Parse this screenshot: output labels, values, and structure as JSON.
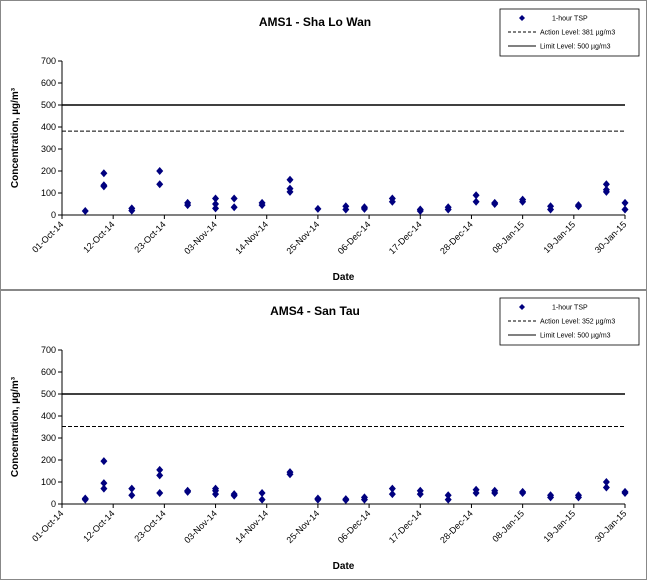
{
  "chart_data": [
    {
      "type": "scatter",
      "title": "AMS1 - Sha Lo Wan",
      "x_label": "Date",
      "y_label": "Concentration, µg/m³",
      "ylim": [
        0,
        700
      ],
      "yticks": [
        0,
        100,
        200,
        300,
        400,
        500,
        600,
        700
      ],
      "xlim": [
        "2014-10-01",
        "2015-01-30"
      ],
      "xticks": [
        {
          "value": "2014-10-01",
          "label": "01-Oct-14"
        },
        {
          "value": "2014-10-12",
          "label": "12-Oct-14"
        },
        {
          "value": "2014-10-23",
          "label": "23-Oct-14"
        },
        {
          "value": "2014-11-03",
          "label": "03-Nov-14"
        },
        {
          "value": "2014-11-14",
          "label": "14-Nov-14"
        },
        {
          "value": "2014-11-25",
          "label": "25-Nov-14"
        },
        {
          "value": "2014-12-06",
          "label": "06-Dec-14"
        },
        {
          "value": "2014-12-17",
          "label": "17-Dec-14"
        },
        {
          "value": "2014-12-28",
          "label": "28-Dec-14"
        },
        {
          "value": "2015-01-08",
          "label": "08-Jan-15"
        },
        {
          "value": "2015-01-19",
          "label": "19-Jan-15"
        },
        {
          "value": "2015-01-30",
          "label": "30-Jan-15"
        }
      ],
      "series": [
        {
          "name": "1-hour TSP",
          "color": "#00007f",
          "x": [
            "2014-10-06",
            "2014-10-10",
            "2014-10-10",
            "2014-10-10",
            "2014-10-16",
            "2014-10-16",
            "2014-10-22",
            "2014-10-22",
            "2014-10-28",
            "2014-10-28",
            "2014-11-03",
            "2014-11-03",
            "2014-11-03",
            "2014-11-07",
            "2014-11-07",
            "2014-11-13",
            "2014-11-13",
            "2014-11-19",
            "2014-11-19",
            "2014-11-19",
            "2014-11-25",
            "2014-12-01",
            "2014-12-01",
            "2014-12-05",
            "2014-12-05",
            "2014-12-11",
            "2014-12-11",
            "2014-12-17",
            "2014-12-17",
            "2014-12-23",
            "2014-12-23",
            "2014-12-29",
            "2014-12-29",
            "2015-01-02",
            "2015-01-02",
            "2015-01-08",
            "2015-01-08",
            "2015-01-14",
            "2015-01-14",
            "2015-01-20",
            "2015-01-20",
            "2015-01-26",
            "2015-01-26",
            "2015-01-26",
            "2015-01-30",
            "2015-01-30"
          ],
          "values": [
            18,
            190,
            135,
            130,
            30,
            20,
            200,
            140,
            55,
            45,
            75,
            50,
            30,
            75,
            35,
            55,
            45,
            160,
            120,
            105,
            28,
            40,
            25,
            35,
            28,
            75,
            60,
            25,
            18,
            35,
            25,
            90,
            60,
            55,
            50,
            70,
            60,
            40,
            25,
            45,
            40,
            140,
            115,
            105,
            55,
            25
          ]
        }
      ],
      "reference_lines": [
        {
          "name": "Action Level: 381 µg/m3",
          "value": 381,
          "style": "dashed"
        },
        {
          "name": "Limit Level: 500 µg/m3",
          "value": 500,
          "style": "solid"
        }
      ]
    },
    {
      "type": "scatter",
      "title": "AMS4 - San Tau",
      "x_label": "Date",
      "y_label": "Concentration, µg/m³",
      "ylim": [
        0,
        700
      ],
      "yticks": [
        0,
        100,
        200,
        300,
        400,
        500,
        600,
        700
      ],
      "xlim": [
        "2014-10-01",
        "2015-01-30"
      ],
      "xticks": [
        {
          "value": "2014-10-01",
          "label": "01-Oct-14"
        },
        {
          "value": "2014-10-12",
          "label": "12-Oct-14"
        },
        {
          "value": "2014-10-23",
          "label": "23-Oct-14"
        },
        {
          "value": "2014-11-03",
          "label": "03-Nov-14"
        },
        {
          "value": "2014-11-14",
          "label": "14-Nov-14"
        },
        {
          "value": "2014-11-25",
          "label": "25-Nov-14"
        },
        {
          "value": "2014-12-06",
          "label": "06-Dec-14"
        },
        {
          "value": "2014-12-17",
          "label": "17-Dec-14"
        },
        {
          "value": "2014-12-28",
          "label": "28-Dec-14"
        },
        {
          "value": "2015-01-08",
          "label": "08-Jan-15"
        },
        {
          "value": "2015-01-19",
          "label": "19-Jan-15"
        },
        {
          "value": "2015-01-30",
          "label": "30-Jan-15"
        }
      ],
      "series": [
        {
          "name": "1-hour TSP",
          "color": "#00007f",
          "x": [
            "2014-10-06",
            "2014-10-06",
            "2014-10-10",
            "2014-10-10",
            "2014-10-10",
            "2014-10-16",
            "2014-10-16",
            "2014-10-22",
            "2014-10-22",
            "2014-10-22",
            "2014-10-28",
            "2014-10-28",
            "2014-11-03",
            "2014-11-03",
            "2014-11-03",
            "2014-11-07",
            "2014-11-07",
            "2014-11-13",
            "2014-11-13",
            "2014-11-19",
            "2014-11-19",
            "2014-11-25",
            "2014-11-25",
            "2014-12-01",
            "2014-12-01",
            "2014-12-05",
            "2014-12-05",
            "2014-12-11",
            "2014-12-11",
            "2014-12-17",
            "2014-12-17",
            "2014-12-23",
            "2014-12-23",
            "2014-12-29",
            "2014-12-29",
            "2015-01-02",
            "2015-01-02",
            "2015-01-08",
            "2015-01-08",
            "2015-01-14",
            "2015-01-14",
            "2015-01-20",
            "2015-01-20",
            "2015-01-26",
            "2015-01-26",
            "2015-01-30",
            "2015-01-30"
          ],
          "values": [
            25,
            20,
            195,
            95,
            70,
            70,
            40,
            155,
            130,
            50,
            60,
            55,
            70,
            60,
            45,
            45,
            38,
            50,
            20,
            145,
            135,
            25,
            20,
            22,
            18,
            30,
            20,
            70,
            45,
            60,
            45,
            40,
            20,
            65,
            50,
            60,
            50,
            55,
            50,
            40,
            30,
            40,
            30,
            100,
            75,
            55,
            50
          ]
        }
      ],
      "reference_lines": [
        {
          "name": "Action Level: 352 µg/m3",
          "value": 352,
          "style": "dashed"
        },
        {
          "name": "Limit Level: 500 µg/m3",
          "value": 500,
          "style": "solid"
        }
      ]
    }
  ]
}
